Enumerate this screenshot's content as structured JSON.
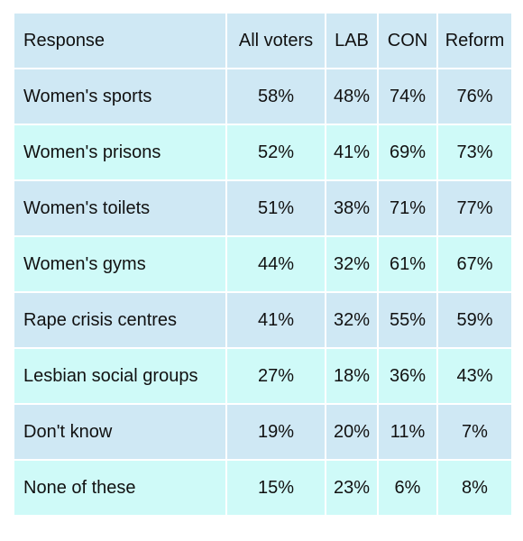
{
  "chart_data": {
    "type": "table",
    "columns": [
      "Response",
      "All voters",
      "LAB",
      "CON",
      "Reform"
    ],
    "rows": [
      {
        "label": "Women's sports",
        "values": [
          "58%",
          "48%",
          "74%",
          "76%"
        ]
      },
      {
        "label": "Women's prisons",
        "values": [
          "52%",
          "41%",
          "69%",
          "73%"
        ]
      },
      {
        "label": "Women's toilets",
        "values": [
          "51%",
          "38%",
          "71%",
          "77%"
        ]
      },
      {
        "label": "Women's gyms",
        "values": [
          "44%",
          "32%",
          "61%",
          "67%"
        ]
      },
      {
        "label": "Rape crisis centres",
        "values": [
          "41%",
          "32%",
          "55%",
          "59%"
        ]
      },
      {
        "label": "Lesbian social groups",
        "values": [
          "27%",
          "18%",
          "36%",
          "43%"
        ]
      },
      {
        "label": "Don't know",
        "values": [
          "19%",
          "20%",
          "11%",
          "7%"
        ]
      },
      {
        "label": "None of these",
        "values": [
          "15%",
          "23%",
          "6%",
          "8%"
        ]
      }
    ],
    "colors": {
      "header_bg": "#cfe8f4",
      "row_bg_a": "#cfe8f4",
      "row_bg_b": "#cffaf8",
      "border": "#ffffff"
    }
  }
}
